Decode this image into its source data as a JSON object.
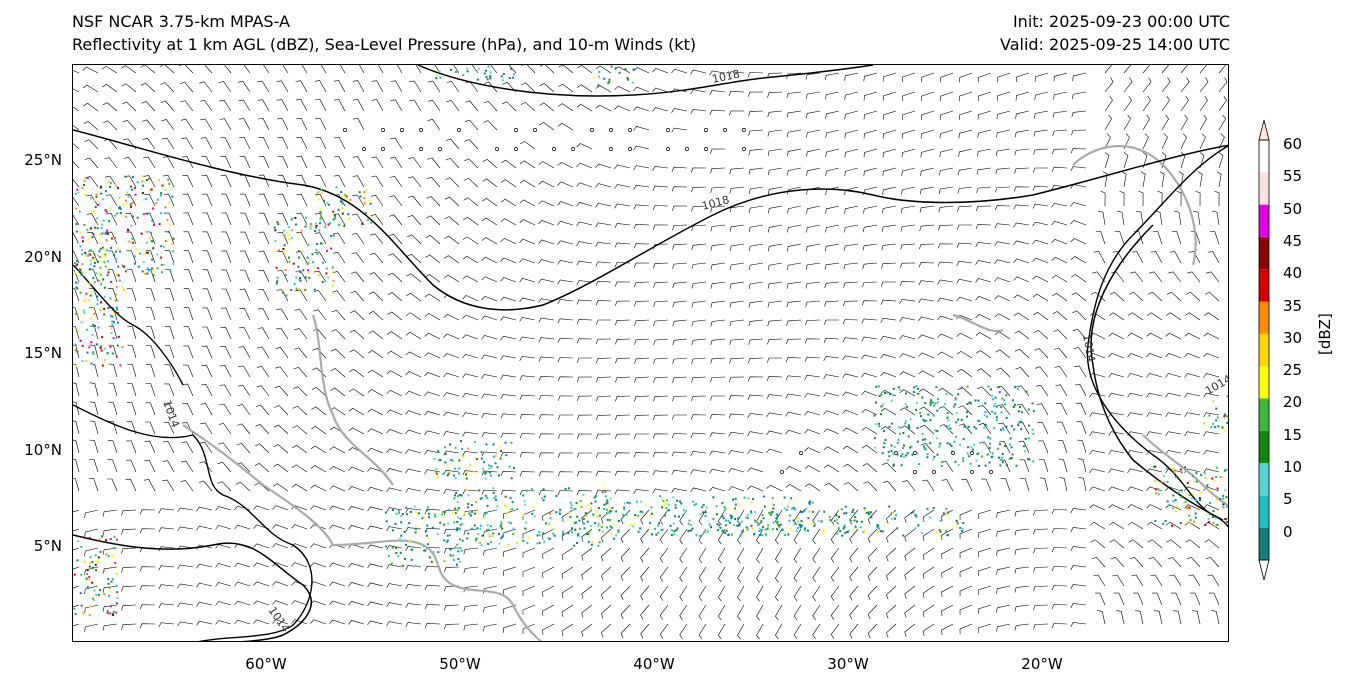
{
  "header": {
    "title_line1": "NSF NCAR 3.75-km MPAS-A",
    "title_line2": "Reflectivity at 1 km AGL (dBZ), Sea-Level Pressure (hPa), and 10-m Winds (kt)",
    "init": "Init: 2025-09-23 00:00 UTC",
    "valid": "Valid: 2025-09-25 14:00 UTC"
  },
  "axes": {
    "lat_labels": [
      "25°N",
      "20°N",
      "15°N",
      "10°N",
      "5°N"
    ],
    "lat_values": [
      25,
      20,
      15,
      10,
      5
    ],
    "lon_labels": [
      "60°W",
      "50°W",
      "40°W",
      "30°W",
      "20°W"
    ],
    "lon_values": [
      -60,
      -50,
      -40,
      -30,
      -20
    ],
    "lon_range": [
      -70,
      -10.5
    ],
    "lat_range": [
      0,
      30
    ]
  },
  "isobars": [
    {
      "label": "1018",
      "value": 1018
    },
    {
      "label": "1018",
      "value": 1018
    },
    {
      "label": "1014",
      "value": 1014
    },
    {
      "label": "1014",
      "value": 1014
    },
    {
      "label": "1014",
      "value": 1014
    },
    {
      "label": "1014",
      "value": 1014
    }
  ],
  "colorbar": {
    "unit": "[dBZ]",
    "ticks": [
      "0",
      "5",
      "10",
      "15",
      "20",
      "25",
      "30",
      "35",
      "40",
      "45",
      "50",
      "55",
      "60"
    ],
    "colors": [
      "#0f7f7f",
      "#1fbdbd",
      "#54d4d4",
      "#118811",
      "#3cb83c",
      "#ffff00",
      "#ffd700",
      "#ff8c00",
      "#d40000",
      "#8b0000",
      "#e400e4",
      "#ffe0e0"
    ],
    "extend_low_color": "#ffffff",
    "extend_high_color": "#ffe4e1"
  },
  "colors": {
    "coast": "#000000",
    "borders": "#aaaaaa",
    "isobar": "#000000"
  }
}
